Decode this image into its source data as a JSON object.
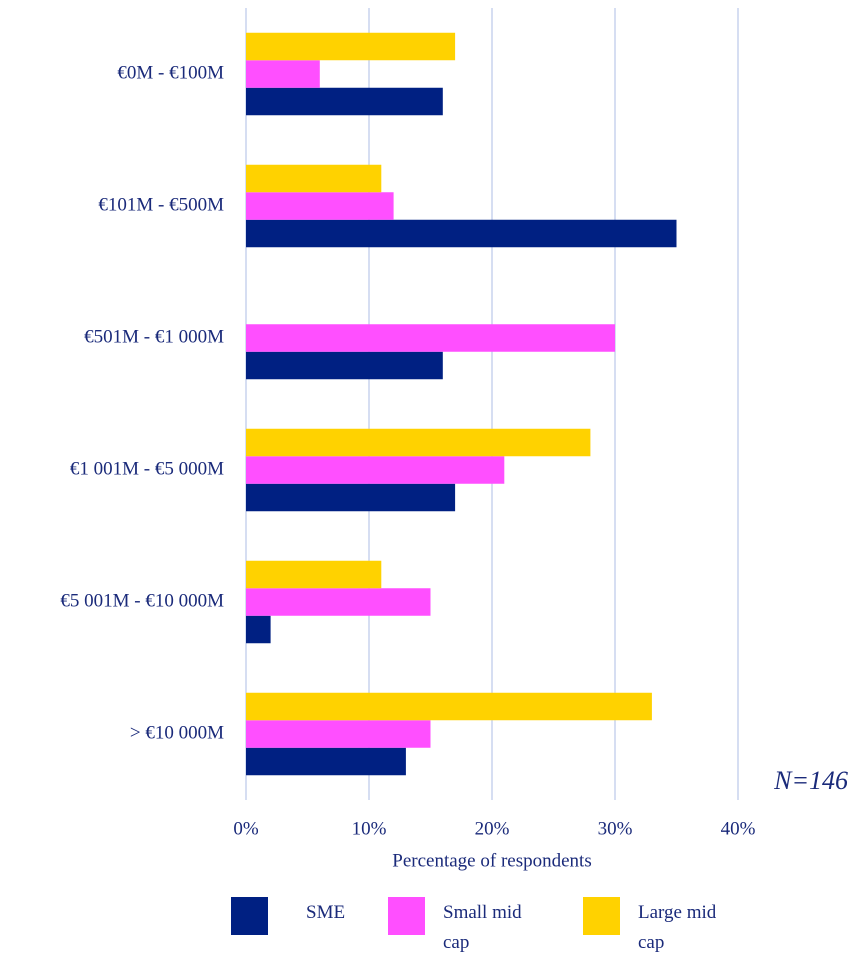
{
  "chart_data": {
    "type": "hbar",
    "categories": [
      "€0M - €100M",
      "€101M - €500M",
      "€501M - €1 000M",
      "€1 001M - €5 000M",
      "€5 001M - €10 000M",
      "> €10 000M"
    ],
    "series": [
      {
        "name": "SME",
        "color": "#002082",
        "values": [
          16,
          35,
          16,
          17,
          2,
          13
        ]
      },
      {
        "name": "Small mid cap",
        "color": "#FF4FFF",
        "values": [
          6,
          12,
          30,
          21,
          15,
          15
        ]
      },
      {
        "name": "Large mid cap",
        "color": "#FFD200",
        "values": [
          17,
          11,
          0,
          28,
          11,
          33
        ]
      }
    ],
    "xlabel": "Percentage of respondents",
    "annotation": "N=146",
    "xlim": [
      0,
      40
    ],
    "xticks": [
      {
        "value": 0,
        "label": "0%"
      },
      {
        "value": 10,
        "label": "10%"
      },
      {
        "value": 20,
        "label": "20%"
      },
      {
        "value": 30,
        "label": "30%"
      },
      {
        "value": 40,
        "label": "40%"
      }
    ],
    "grid": true,
    "legend": "bottom"
  }
}
